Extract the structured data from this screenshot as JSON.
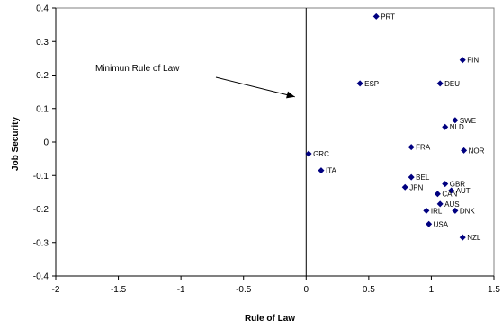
{
  "chart_data": {
    "type": "scatter",
    "title": "",
    "xlabel": "Rule of Law",
    "ylabel": "Job Security",
    "xlim": [
      -2,
      1.5
    ],
    "ylim": [
      -0.4,
      0.4
    ],
    "xticks": [
      "-2",
      "-1.5",
      "-1",
      "-0.5",
      "0",
      "0.5",
      "1",
      "1.5"
    ],
    "yticks": [
      "0.4",
      "0.3",
      "0.2",
      "0.1",
      "0",
      "-0.1",
      "-0.2",
      "-0.3",
      "-0.4"
    ],
    "grid": false,
    "legend": false,
    "marker_color": "#000080",
    "reference_line_x": 0,
    "annotation": {
      "text": "Minimun  Rule of Law",
      "arrow_to": [
        -0.09,
        0.135
      ]
    },
    "points": [
      {
        "label": "PRT",
        "x": 0.56,
        "y": 0.375
      },
      {
        "label": "FIN",
        "x": 1.25,
        "y": 0.245
      },
      {
        "label": "ESP",
        "x": 0.43,
        "y": 0.175
      },
      {
        "label": "DEU",
        "x": 1.07,
        "y": 0.175
      },
      {
        "label": "SWE",
        "x": 1.19,
        "y": 0.065
      },
      {
        "label": "NLD",
        "x": 1.11,
        "y": 0.045
      },
      {
        "label": "FRA",
        "x": 0.84,
        "y": -0.015
      },
      {
        "label": "NOR",
        "x": 1.26,
        "y": -0.025
      },
      {
        "label": "GRC",
        "x": 0.02,
        "y": -0.035
      },
      {
        "label": "ITA",
        "x": 0.12,
        "y": -0.085
      },
      {
        "label": "BEL",
        "x": 0.84,
        "y": -0.105
      },
      {
        "label": "GBR",
        "x": 1.11,
        "y": -0.125
      },
      {
        "label": "JPN",
        "x": 0.79,
        "y": -0.135
      },
      {
        "label": "AUT",
        "x": 1.16,
        "y": -0.145
      },
      {
        "label": "CAN",
        "x": 1.05,
        "y": -0.155
      },
      {
        "label": "AUS",
        "x": 1.07,
        "y": -0.185
      },
      {
        "label": "IRL",
        "x": 0.96,
        "y": -0.205
      },
      {
        "label": "DNK",
        "x": 1.19,
        "y": -0.205
      },
      {
        "label": "USA",
        "x": 0.98,
        "y": -0.245
      },
      {
        "label": "NZL",
        "x": 1.25,
        "y": -0.285
      }
    ]
  }
}
